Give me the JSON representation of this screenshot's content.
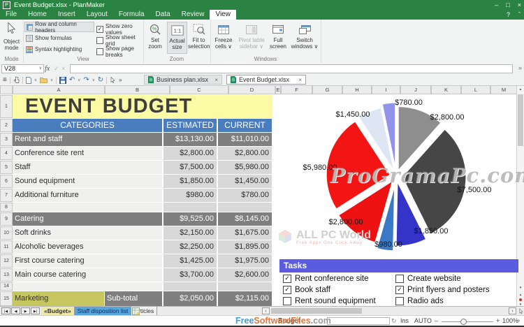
{
  "icons": {
    "hamburger": "≡",
    "chevron": "∨",
    "overflow": "»",
    "undo": "↶",
    "redo": "↷",
    "repeat": "↻",
    "check": "✓",
    "cross": "×",
    "question": "?",
    "collapse": "ˆ",
    "minimize": "–",
    "maximize": "□",
    "close": "×",
    "up": "▲",
    "down": "▼",
    "first": "|◀",
    "prev": "◀",
    "next": "▶",
    "last": "▶|",
    "angle_left": "‹",
    "angle_right": "›",
    "sync": "↻",
    "minus": "–",
    "plus": "+",
    "percent": "%"
  },
  "titlebar": {
    "app_icon_letter": "P",
    "title": "Event Budget.xlsx - PlanMaker"
  },
  "menubar": {
    "items": [
      {
        "label": "File"
      },
      {
        "label": "Home"
      },
      {
        "label": "Insert"
      },
      {
        "label": "Layout"
      },
      {
        "label": "Formula"
      },
      {
        "label": "Data"
      },
      {
        "label": "Review"
      },
      {
        "label": "View",
        "active": true
      }
    ]
  },
  "ribbon": {
    "mode_group": {
      "label": "Mode",
      "button": "Object mode"
    },
    "view_group": {
      "label": "View",
      "buttons": [
        {
          "label": "Row and column headers",
          "active": true
        },
        {
          "label": "Show formulas",
          "active": false
        },
        {
          "label": "Syntax highlighting",
          "active": false
        }
      ],
      "checkboxes": [
        {
          "label": "Show zero values",
          "checked": true
        },
        {
          "label": "Show sheet grid",
          "checked": false
        },
        {
          "label": "Show page breaks",
          "checked": false
        }
      ]
    },
    "zoom_group": {
      "label": "Zoom",
      "actual_size_icon": "1:1",
      "buttons": [
        {
          "label": "Set zoom",
          "active": false
        },
        {
          "label": "Actual size",
          "active": true
        },
        {
          "label": "Fit to selection",
          "active": false
        }
      ]
    },
    "windows_group": {
      "label": "Windows",
      "buttons": [
        {
          "label": "Freeze cells",
          "dropdown": true,
          "disabled": false
        },
        {
          "label": "Pivot table sidebar",
          "dropdown": true,
          "disabled": true
        },
        {
          "label": "Full screen",
          "dropdown": false,
          "disabled": false
        },
        {
          "label": "Switch windows",
          "dropdown": true,
          "disabled": false
        }
      ]
    }
  },
  "formula_bar": {
    "cell_ref": "V28",
    "fx_label": "fx"
  },
  "toolbar": {
    "doc_tabs": [
      {
        "label": "Business plan.xlsx",
        "active": false
      },
      {
        "label": "Event Budget.xlsx",
        "active": true
      }
    ]
  },
  "sheet": {
    "column_letters": [
      "A",
      "B",
      "C",
      "D",
      "E",
      "F",
      "G",
      "H",
      "I",
      "J",
      "K",
      "L",
      "M"
    ],
    "row_numbers": [
      "1",
      "2",
      "3",
      "4",
      "5",
      "6",
      "7",
      "8",
      "9",
      "10",
      "11",
      "12",
      "13",
      "14",
      "15"
    ],
    "title": "EVENT BUDGET",
    "header": {
      "categories": "CATEGORIES",
      "estimated": "ESTIMATED",
      "current": "CURRENT"
    },
    "rows": [
      {
        "n": "3",
        "category": "Rent and staff",
        "estimated": "$13,130.00",
        "current": "$11,010.00",
        "kind": "section"
      },
      {
        "n": "4",
        "category": "Conference site rent",
        "estimated": "$2,800.00",
        "current": "$2,800.00",
        "kind": "item"
      },
      {
        "n": "5",
        "category": "Staff",
        "estimated": "$7,500.00",
        "current": "$5,980.00",
        "kind": "item"
      },
      {
        "n": "6",
        "category": "Sound equipment",
        "estimated": "$1,850.00",
        "current": "$1,450.00",
        "kind": "item"
      },
      {
        "n": "7",
        "category": "Additional furniture",
        "estimated": "$980.00",
        "current": "$780.00",
        "kind": "item"
      },
      {
        "n": "8",
        "category": "",
        "estimated": "",
        "current": "",
        "kind": "empty"
      },
      {
        "n": "9",
        "category": "Catering",
        "estimated": "$9,525.00",
        "current": "$8,145.00",
        "kind": "section"
      },
      {
        "n": "10",
        "category": "Soft drinks",
        "estimated": "$2,150.00",
        "current": "$1,675.00",
        "kind": "item"
      },
      {
        "n": "11",
        "category": "Alcoholic beverages",
        "estimated": "$2,250.00",
        "current": "$1,895.00",
        "kind": "item"
      },
      {
        "n": "12",
        "category": "First course catering",
        "estimated": "$1,425.00",
        "current": "$1,975.00",
        "kind": "item"
      },
      {
        "n": "13",
        "category": "Main course catering",
        "estimated": "$3,700.00",
        "current": "$2,600.00",
        "kind": "item"
      },
      {
        "n": "14",
        "category": "",
        "estimated": "",
        "current": "",
        "kind": "empty"
      },
      {
        "n": "15",
        "category": "Marketing",
        "category_b": "Sub-total",
        "estimated": "$2,050.00",
        "current": "$2,115.00",
        "kind": "marketing"
      }
    ]
  },
  "chart_data": {
    "type": "pie",
    "exploded": true,
    "start_angle_deg": 0,
    "direction": "clockwise",
    "title": "",
    "slices": [
      {
        "label": "$2,800.00",
        "value": 2800,
        "color": "#8e8e8e"
      },
      {
        "label": "$7,500.00",
        "value": 7500,
        "color": "#464646"
      },
      {
        "label": "$1,850.00",
        "value": 1850,
        "color": "#3434c8"
      },
      {
        "label": "$980.00",
        "value": 980,
        "color": "#3a7ac4"
      },
      {
        "label": "$2,800.00",
        "value": 2800,
        "color": "#ee1111"
      },
      {
        "label": "$5,980.00",
        "value": 5980,
        "color": "#f31414"
      },
      {
        "label": "$1,450.00",
        "value": 1450,
        "color": "#dde6f2"
      },
      {
        "label": "$780.00",
        "value": 780,
        "color": "#9393ec"
      }
    ]
  },
  "tasks": {
    "title": "Tasks",
    "columns": [
      [
        {
          "label": "Rent conference site",
          "checked": true
        },
        {
          "label": "Book staff",
          "checked": true
        },
        {
          "label": "Rent sound equipment",
          "checked": false
        }
      ],
      [
        {
          "label": "Create website",
          "checked": false
        },
        {
          "label": "Print flyers and posters",
          "checked": true
        },
        {
          "label": "Radio ads",
          "checked": false
        }
      ]
    ]
  },
  "sheet_tabs": {
    "tabs": [
      {
        "label": "«Budget»",
        "state": "active"
      },
      {
        "label": "Staff disposition list",
        "state": "highlight"
      },
      {
        "label": "Articles",
        "state": "normal"
      }
    ]
  },
  "status_bar": {
    "sheet_name": "Budget",
    "ins": "Ins",
    "auto": "AUTO",
    "zoom": "100%"
  },
  "watermarks": {
    "center": "ProGramaPc.com",
    "all_pc": "ALL PC World",
    "all_pc_tagline": "Free Apps One Click Away",
    "bottom": [
      {
        "text": "Free",
        "color": "#4a9bd4"
      },
      {
        "text": "SoftwareFiles",
        "color": "#e0793c"
      },
      {
        "text": ".com",
        "color": "#9a9a9a"
      }
    ]
  }
}
